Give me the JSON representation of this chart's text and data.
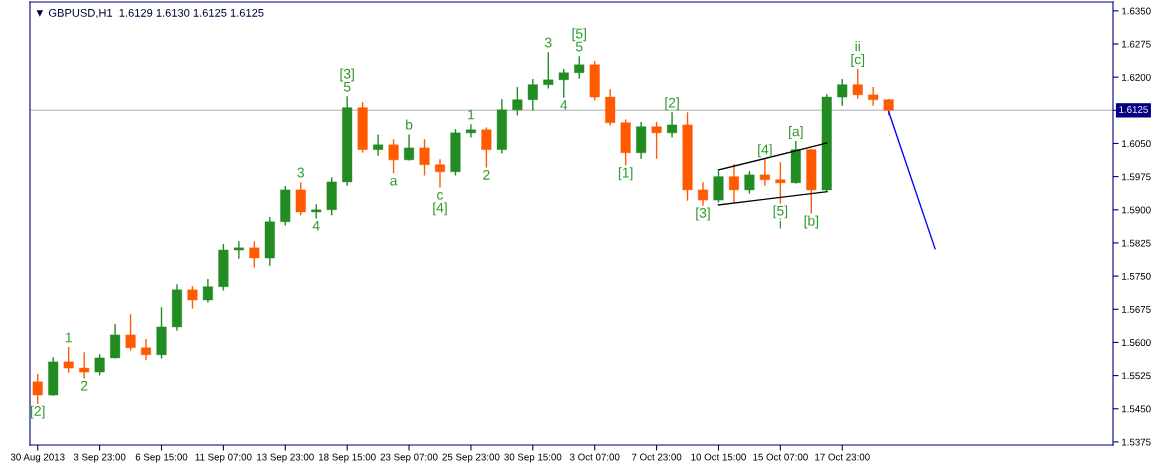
{
  "chart_data": {
    "type": "candlestick",
    "title": "▼ GBPUSD,H1  1.6129 1.6130 1.6125 1.6125",
    "categories": [
      "30 Aug 2013",
      null,
      null,
      null,
      "3 Sep 23:00",
      null,
      null,
      null,
      "6 Sep 15:00",
      null,
      null,
      null,
      "11 Sep 07:00",
      null,
      null,
      null,
      "13 Sep 23:00",
      null,
      null,
      null,
      "18 Sep 15:00",
      null,
      null,
      null,
      "23 Sep 07:00",
      null,
      null,
      null,
      "25 Sep 23:00",
      null,
      null,
      null,
      "30 Sep 15:00",
      null,
      null,
      null,
      "3 Oct 07:00",
      null,
      null,
      null,
      "7 Oct 23:00",
      null,
      null,
      null,
      "10 Oct 15:00",
      null,
      null,
      null,
      "15 Oct 07:00",
      null,
      null,
      null,
      "17 Oct 23:00",
      null,
      null,
      null,
      null,
      null,
      null,
      null,
      null,
      null,
      null,
      null,
      null,
      null,
      null,
      null,
      null,
      null
    ],
    "colors": [
      "#ff5a00",
      "#228b22",
      "#ff5a00",
      "#ff5a00",
      "#228b22",
      "#228b22",
      "#ff5a00",
      "#ff5a00",
      "#228b22",
      "#228b22",
      "#ff5a00",
      "#228b22",
      "#228b22",
      "#228b22",
      "#ff5a00",
      "#228b22",
      "#228b22",
      "#ff5a00",
      "#228b22",
      "#228b22",
      "#228b22",
      "#ff5a00",
      "#228b22",
      "#ff5a00",
      "#228b22",
      "#ff5a00",
      "#ff5a00",
      "#228b22",
      "#228b22",
      "#ff5a00",
      "#228b22",
      "#228b22",
      "#228b22",
      "#228b22",
      "#228b22",
      "#228b22",
      "#ff5a00",
      "#ff5a00",
      "#ff5a00",
      "#228b22",
      "#ff5a00",
      "#228b22",
      "#ff5a00",
      "#ff5a00",
      "#228b22",
      "#ff5a00",
      "#228b22",
      "#ff5a00",
      "#ff5a00",
      "#228b22",
      "#ff5a00",
      "#228b22",
      "#228b22",
      "#ff5a00",
      "#ff5a00",
      "#ff5a00",
      null,
      null,
      null,
      null,
      null,
      null,
      null,
      null,
      null,
      null,
      null,
      null,
      null,
      null
    ],
    "ohlc": [
      [
        1.5511,
        1.5527,
        1.5463,
        1.5481
      ],
      [
        1.5481,
        1.5565,
        1.5481,
        1.5556
      ],
      [
        1.5556,
        1.5588,
        1.5533,
        1.5542
      ],
      [
        1.5542,
        1.5576,
        1.552,
        1.5533
      ],
      [
        1.5533,
        1.5572,
        1.5527,
        1.5565
      ],
      [
        1.5565,
        1.564,
        1.5565,
        1.5617
      ],
      [
        1.5617,
        1.5662,
        1.5583,
        1.5588
      ],
      [
        1.5588,
        1.5606,
        1.5561,
        1.5572
      ],
      [
        1.5572,
        1.5678,
        1.5565,
        1.5635
      ],
      [
        1.5635,
        1.573,
        1.5628,
        1.5719
      ],
      [
        1.5719,
        1.5726,
        1.5678,
        1.5696
      ],
      [
        1.5696,
        1.5742,
        1.5692,
        1.5726
      ],
      [
        1.5726,
        1.5821,
        1.5719,
        1.5809
      ],
      [
        1.5809,
        1.5827,
        1.5791,
        1.5814
      ],
      [
        1.5814,
        1.5827,
        1.5771,
        1.5791
      ],
      [
        1.5791,
        1.5882,
        1.5775,
        1.5873
      ],
      [
        1.5873,
        1.5952,
        1.5866,
        1.5945
      ],
      [
        1.5945,
        1.5961,
        1.5889,
        1.5895
      ],
      [
        1.5895,
        1.5911,
        1.5882,
        1.59
      ],
      [
        1.59,
        1.5972,
        1.5889,
        1.5963
      ],
      [
        1.5963,
        1.6155,
        1.5956,
        1.6131
      ],
      [
        1.6131,
        1.6142,
        1.6031,
        1.6036
      ],
      [
        1.6036,
        1.6069,
        1.6024,
        1.6047
      ],
      [
        1.6047,
        1.6058,
        1.5984,
        1.6013
      ],
      [
        1.6013,
        1.6069,
        1.6013,
        1.604
      ],
      [
        1.604,
        1.6058,
        1.5979,
        1.6002
      ],
      [
        1.6002,
        1.6013,
        1.5952,
        1.5986
      ],
      [
        1.5986,
        1.6081,
        1.5979,
        1.6074
      ],
      [
        1.6074,
        1.6092,
        1.6065,
        1.6081
      ],
      [
        1.6081,
        1.6085,
        1.5997,
        1.6036
      ],
      [
        1.6036,
        1.6149,
        1.6029,
        1.6126
      ],
      [
        1.6126,
        1.6176,
        1.6115,
        1.6149
      ],
      [
        1.6149,
        1.6194,
        1.6126,
        1.6183
      ],
      [
        1.6183,
        1.6255,
        1.6176,
        1.6194
      ],
      [
        1.6194,
        1.6217,
        1.6155,
        1.621
      ],
      [
        1.621,
        1.6246,
        1.6198,
        1.6228
      ],
      [
        1.6228,
        1.6235,
        1.6149,
        1.6155
      ],
      [
        1.6155,
        1.6171,
        1.6092,
        1.6097
      ],
      [
        1.6097,
        1.6103,
        1.6002,
        1.6029
      ],
      [
        1.6029,
        1.6097,
        1.6017,
        1.6088
      ],
      [
        1.6088,
        1.6097,
        1.6017,
        1.6074
      ],
      [
        1.6074,
        1.6119,
        1.6065,
        1.6092
      ],
      [
        1.6092,
        1.6119,
        1.5922,
        1.5945
      ],
      [
        1.5945,
        1.5961,
        1.5911,
        1.5922
      ],
      [
        1.5922,
        1.5986,
        1.5918,
        1.5975
      ],
      [
        1.5975,
        1.6002,
        1.5918,
        1.5945
      ],
      [
        1.5945,
        1.5986,
        1.5938,
        1.5979
      ],
      [
        1.5979,
        1.6013,
        1.5956,
        1.5968
      ],
      [
        1.5968,
        1.6006,
        1.5916,
        1.5961
      ],
      [
        1.5961,
        1.6054,
        1.5961,
        1.6036
      ],
      [
        1.6036,
        1.6036,
        1.5893,
        1.5945
      ],
      [
        1.5945,
        1.616,
        1.5941,
        1.6155
      ],
      [
        1.6155,
        1.6194,
        1.6137,
        1.6183
      ],
      [
        1.6183,
        1.6217,
        1.6153,
        1.616
      ],
      [
        1.616,
        1.6176,
        1.6137,
        1.6149
      ],
      [
        1.6149,
        1.6149,
        1.6115,
        1.6125
      ],
      null,
      null,
      null,
      null,
      null,
      null,
      null,
      null,
      null,
      null,
      null,
      null,
      null,
      null
    ],
    "value_labels": [
      "[2]",
      null,
      "1",
      "2",
      null,
      null,
      null,
      null,
      null,
      null,
      null,
      null,
      null,
      null,
      null,
      null,
      null,
      "3",
      "4",
      null,
      "[3]\n5",
      null,
      null,
      "a",
      "b",
      null,
      "c\n[4]",
      null,
      "1",
      "2",
      null,
      null,
      null,
      "3",
      "4",
      "[5]\n5",
      null,
      null,
      "[1]",
      null,
      null,
      "[2]",
      null,
      "[3]",
      null,
      null,
      null,
      "[4]",
      "[5]\ni",
      "[a]",
      "[b]",
      null,
      null,
      "ii\n[c]",
      null,
      null,
      null,
      null,
      null,
      null,
      null,
      null,
      null,
      null,
      null,
      null,
      null,
      null,
      null,
      null
    ],
    "series": [
      {
        "type": "line",
        "color": "#0000ff",
        "values": [
          null,
          null,
          null,
          null,
          null,
          null,
          null,
          null,
          null,
          null,
          null,
          null,
          null,
          null,
          null,
          null,
          null,
          null,
          null,
          null,
          null,
          null,
          null,
          null,
          null,
          null,
          null,
          null,
          null,
          null,
          null,
          null,
          null,
          null,
          null,
          null,
          null,
          null,
          null,
          null,
          null,
          null,
          null,
          null,
          null,
          null,
          null,
          null,
          null,
          null,
          null,
          null,
          null,
          null,
          null,
          1.6122,
          null,
          null,
          1.5812,
          null,
          null,
          null,
          null,
          null,
          null,
          null,
          null,
          null,
          null,
          null
        ]
      },
      {
        "type": "line",
        "color": "#000000",
        "values": [
          null,
          null,
          null,
          null,
          null,
          null,
          null,
          null,
          null,
          null,
          null,
          null,
          null,
          null,
          null,
          null,
          null,
          null,
          null,
          null,
          null,
          null,
          null,
          null,
          null,
          null,
          null,
          null,
          null,
          null,
          null,
          null,
          null,
          null,
          null,
          null,
          null,
          null,
          null,
          null,
          null,
          null,
          null,
          null,
          1.599,
          null,
          null,
          null,
          null,
          null,
          null,
          1.6051,
          null,
          null,
          null,
          null,
          null,
          null,
          null,
          null,
          null,
          null,
          null,
          null,
          null,
          null,
          null,
          null,
          null,
          null
        ]
      },
      {
        "type": "line",
        "color": "#000000",
        "values": [
          null,
          null,
          null,
          null,
          null,
          null,
          null,
          null,
          null,
          null,
          null,
          null,
          null,
          null,
          null,
          null,
          null,
          null,
          null,
          null,
          null,
          null,
          null,
          null,
          null,
          null,
          null,
          null,
          null,
          null,
          null,
          null,
          null,
          null,
          null,
          null,
          null,
          null,
          null,
          null,
          null,
          null,
          null,
          null,
          1.5911,
          null,
          null,
          null,
          null,
          null,
          null,
          1.5941,
          null,
          null,
          null,
          null,
          null,
          null,
          null,
          null,
          null,
          null,
          null,
          null,
          null,
          null,
          null,
          null,
          null,
          null
        ]
      }
    ],
    "ylim": [
      1.5368,
      1.637
    ],
    "yticks": [
      {
        "value": 1.5375,
        "label": "1.5375"
      },
      {
        "value": 1.545,
        "label": "1.5450"
      },
      {
        "value": 1.5525,
        "label": "1.5525"
      },
      {
        "value": 1.56,
        "label": "1.5600"
      },
      {
        "value": 1.5675,
        "label": "1.5675"
      },
      {
        "value": 1.575,
        "label": "1.5750"
      },
      {
        "value": 1.5825,
        "label": "1.5825"
      },
      {
        "value": 1.59,
        "label": "1.5900"
      },
      {
        "value": 1.5975,
        "label": "1.5975"
      },
      {
        "value": 1.605,
        "label": "1.6050"
      },
      {
        "value": 1.6125,
        "label": null
      },
      {
        "value": 1.62,
        "label": "1.6200"
      },
      {
        "value": 1.6275,
        "label": "1.6275"
      },
      {
        "value": 1.635,
        "label": "1.6350"
      }
    ],
    "ref_lines": [
      {
        "axis": "y",
        "value": 1.6125,
        "label": "1.6125",
        "color": "#c8c8c8"
      }
    ],
    "grid": false
  }
}
